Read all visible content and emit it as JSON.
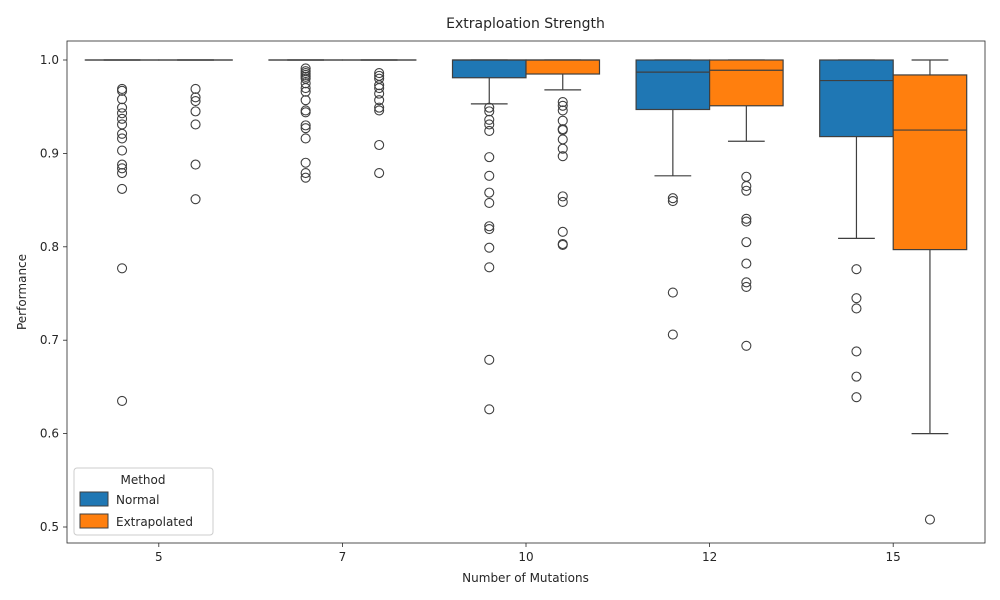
{
  "chart_data": {
    "type": "box",
    "title": "Extraploation Strength",
    "xlabel": "Number of Mutations",
    "ylabel": "Performance",
    "ylim": [
      0.48,
      1.025
    ],
    "yticks": [
      "0.5",
      "0.6",
      "0.7",
      "0.8",
      "0.9",
      "1.0"
    ],
    "categories": [
      "5",
      "7",
      "10",
      "12",
      "15"
    ],
    "legend": {
      "title": "Method",
      "position": "lower-left",
      "entries": [
        "Normal",
        "Extrapolated"
      ]
    },
    "series": [
      {
        "name": "Normal",
        "color": "#1f77b4",
        "boxes": [
          {
            "category": "5",
            "whisker_low": 1.0,
            "q1": 1.0,
            "median": 1.0,
            "q3": 1.0,
            "whisker_high": 1.0,
            "outliers": [
              0.969,
              0.967,
              0.958,
              0.949,
              0.943,
              0.937,
              0.931,
              0.921,
              0.916,
              0.903,
              0.888,
              0.884,
              0.879,
              0.862,
              0.777,
              0.635
            ]
          },
          {
            "category": "7",
            "whisker_low": 1.0,
            "q1": 1.0,
            "median": 1.0,
            "q3": 1.0,
            "whisker_high": 1.0,
            "outliers": [
              0.991,
              0.988,
              0.986,
              0.984,
              0.982,
              0.98,
              0.975,
              0.97,
              0.966,
              0.957,
              0.946,
              0.944,
              0.93,
              0.927,
              0.916,
              0.89,
              0.879,
              0.874
            ]
          },
          {
            "category": "10",
            "whisker_low": 0.953,
            "q1": 0.981,
            "median": 1.0,
            "q3": 1.0,
            "whisker_high": 1.0,
            "outliers": [
              0.949,
              0.945,
              0.936,
              0.931,
              0.924,
              0.896,
              0.876,
              0.858,
              0.847,
              0.822,
              0.819,
              0.799,
              0.778,
              0.679,
              0.626
            ]
          },
          {
            "category": "12",
            "whisker_low": 0.876,
            "q1": 0.947,
            "median": 0.987,
            "q3": 1.0,
            "whisker_high": 1.0,
            "outliers": [
              0.852,
              0.849,
              0.751,
              0.706
            ]
          },
          {
            "category": "15",
            "whisker_low": 0.809,
            "q1": 0.918,
            "median": 0.978,
            "q3": 1.0,
            "whisker_high": 1.0,
            "outliers": [
              0.776,
              0.745,
              0.734,
              0.688,
              0.661,
              0.639
            ]
          }
        ]
      },
      {
        "name": "Extrapolated",
        "color": "#ff7f0e",
        "boxes": [
          {
            "category": "5",
            "whisker_low": 1.0,
            "q1": 1.0,
            "median": 1.0,
            "q3": 1.0,
            "whisker_high": 1.0,
            "outliers": [
              0.969,
              0.96,
              0.956,
              0.945,
              0.931,
              0.888,
              0.851
            ]
          },
          {
            "category": "7",
            "whisker_low": 1.0,
            "q1": 1.0,
            "median": 1.0,
            "q3": 1.0,
            "whisker_high": 1.0,
            "outliers": [
              0.986,
              0.983,
              0.98,
              0.973,
              0.97,
              0.964,
              0.957,
              0.949,
              0.946,
              0.909,
              0.879
            ]
          },
          {
            "category": "10",
            "whisker_low": 0.968,
            "q1": 0.985,
            "median": 1.0,
            "q3": 1.0,
            "whisker_high": 1.0,
            "outliers": [
              0.955,
              0.951,
              0.946,
              0.935,
              0.926,
              0.925,
              0.915,
              0.905,
              0.897,
              0.854,
              0.848,
              0.816,
              0.803,
              0.802
            ]
          },
          {
            "category": "12",
            "whisker_low": 0.913,
            "q1": 0.951,
            "median": 0.989,
            "q3": 1.0,
            "whisker_high": 1.0,
            "outliers": [
              0.875,
              0.865,
              0.86,
              0.83,
              0.827,
              0.805,
              0.782,
              0.762,
              0.757,
              0.694
            ]
          },
          {
            "category": "15",
            "whisker_low": 0.6,
            "q1": 0.797,
            "median": 0.925,
            "q3": 0.984,
            "whisker_high": 1.0,
            "outliers": [
              0.508
            ]
          }
        ]
      }
    ]
  }
}
